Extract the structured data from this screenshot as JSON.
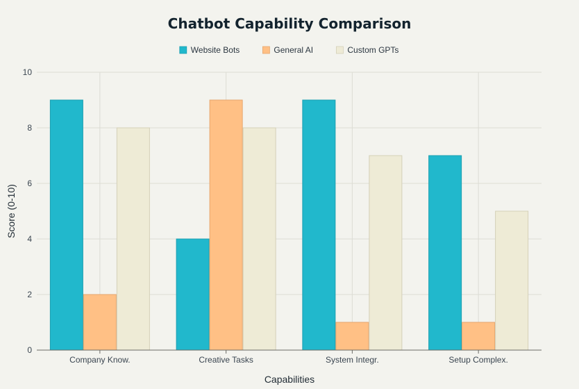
{
  "chart_data": {
    "type": "bar",
    "title": "Chatbot Capability Comparison",
    "xlabel": "Capabilities",
    "ylabel": "Score (0-10)",
    "categories": [
      "Company Know.",
      "Creative Tasks",
      "System Integr.",
      "Setup Complex."
    ],
    "series": [
      {
        "name": "Website Bots",
        "values": [
          9,
          4,
          9,
          7
        ],
        "color": "#21b8cc",
        "stroke": "#1a9fb1"
      },
      {
        "name": "General AI",
        "values": [
          2,
          9,
          1,
          1
        ],
        "color": "#ffc085",
        "stroke": "#e6a66d"
      },
      {
        "name": "Custom GPTs",
        "values": [
          8,
          8,
          7,
          5
        ],
        "color": "#eeebd6",
        "stroke": "#d4d0b8"
      }
    ],
    "ylim": [
      0,
      10
    ],
    "yticks": [
      0,
      2,
      4,
      6,
      8,
      10
    ],
    "grid": true,
    "legend_position": "top-center"
  }
}
